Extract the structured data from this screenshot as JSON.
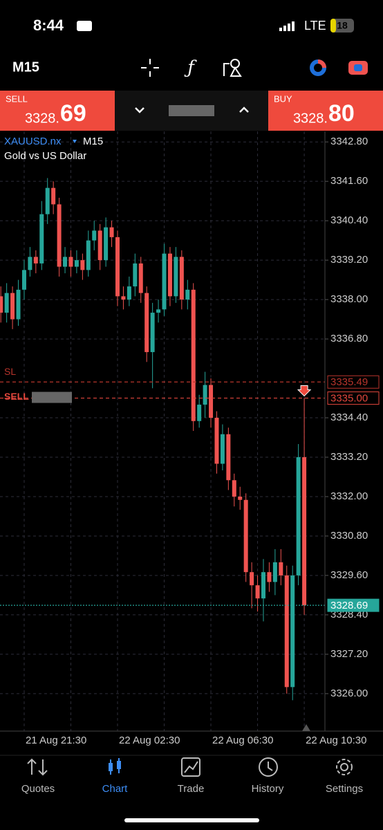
{
  "status": {
    "time": "8:44",
    "network": "LTE",
    "battery": "18"
  },
  "toolbar": {
    "timeframe": "M15"
  },
  "sell": {
    "label": "SELL",
    "price_main": "3328.",
    "price_big": "69"
  },
  "buy": {
    "label": "BUY",
    "price_main": "3328.",
    "price_big": "80"
  },
  "chart_data": {
    "type": "candlestick",
    "symbol": "XAUUSD.nx",
    "timeframe": "M15",
    "description": "Gold vs US Dollar",
    "categories": [
      null,
      null,
      null,
      null,
      "21 Aug 21:30",
      null,
      null,
      null,
      null,
      null,
      null,
      null,
      null,
      null,
      null,
      null,
      null,
      null,
      null,
      null,
      "22 Aug 02:30",
      null,
      null,
      null,
      null,
      null,
      null,
      null,
      null,
      null,
      null,
      null,
      null,
      null,
      null,
      null,
      "22 Aug 06:30",
      null,
      null,
      null,
      null,
      null,
      null,
      null,
      null,
      null,
      null,
      null,
      null,
      null,
      null,
      null,
      "22 Aug 10:30"
    ],
    "open": [
      3338.1,
      3337.6,
      3338.2,
      3337.4,
      3338.3,
      3338.9,
      3339.3,
      3339.1,
      3340.6,
      3341.4,
      3340.9,
      3339.0,
      3339.3,
      3339.0,
      3339.2,
      3338.9,
      3339.8,
      3340.1,
      3339.2,
      3340.2,
      3339.9,
      3338.1,
      3338.0,
      3338.4,
      3339.1,
      3338.2,
      3336.4,
      3337.6,
      3337.7,
      3339.4,
      3338.1,
      3339.3,
      3338.0,
      3338.3,
      3334.3,
      3334.8,
      3335.4,
      3334.4,
      3333.0,
      3333.9,
      3332.5,
      3332.0,
      3331.9,
      3329.7,
      3329.3,
      3328.9,
      3329.7,
      3329.4,
      3330.0,
      3329.6,
      3326.2,
      3329.6,
      3333.2
    ],
    "high": [
      3338.4,
      3338.5,
      3338.4,
      3338.6,
      3339.2,
      3339.6,
      3339.5,
      3341.0,
      3341.7,
      3341.6,
      3341.1,
      3339.6,
      3339.5,
      3339.5,
      3339.4,
      3340.1,
      3340.4,
      3340.3,
      3340.5,
      3340.4,
      3340.1,
      3338.4,
      3338.7,
      3339.4,
      3339.3,
      3338.4,
      3337.9,
      3338.0,
      3339.7,
      3339.6,
      3339.6,
      3339.5,
      3338.6,
      3338.5,
      3335.1,
      3335.8,
      3335.6,
      3334.6,
      3334.2,
      3334.1,
      3332.7,
      3332.3,
      3332.1,
      3330.0,
      3329.6,
      3330.1,
      3330.0,
      3330.4,
      3330.4,
      3329.9,
      3329.9,
      3333.6,
      3335.0
    ],
    "low": [
      3337.3,
      3337.3,
      3337.1,
      3337.2,
      3338.0,
      3338.7,
      3338.8,
      3338.9,
      3340.3,
      3340.6,
      3338.7,
      3338.8,
      3338.7,
      3338.8,
      3338.6,
      3338.7,
      3339.5,
      3338.9,
      3339.0,
      3339.6,
      3337.8,
      3337.7,
      3337.8,
      3338.1,
      3337.9,
      3336.1,
      3335.3,
      3337.3,
      3337.5,
      3337.8,
      3337.9,
      3337.7,
      3337.7,
      3334.0,
      3334.1,
      3334.4,
      3334.1,
      3332.7,
      3332.8,
      3332.2,
      3331.7,
      3331.6,
      3329.4,
      3328.6,
      3328.5,
      3328.2,
      3329.1,
      3329.0,
      3329.3,
      3326.0,
      3325.8,
      3329.3,
      3328.4
    ],
    "close": [
      3337.6,
      3338.2,
      3337.4,
      3338.3,
      3338.9,
      3339.3,
      3339.1,
      3340.6,
      3341.4,
      3340.9,
      3339.0,
      3339.3,
      3339.0,
      3339.2,
      3338.9,
      3339.8,
      3340.1,
      3339.2,
      3340.2,
      3339.9,
      3338.1,
      3338.0,
      3338.4,
      3339.1,
      3338.2,
      3336.4,
      3337.6,
      3337.7,
      3339.4,
      3338.1,
      3339.3,
      3338.0,
      3338.3,
      3334.3,
      3334.8,
      3335.4,
      3334.4,
      3333.0,
      3333.9,
      3332.5,
      3332.0,
      3331.9,
      3329.7,
      3329.3,
      3328.9,
      3329.7,
      3329.4,
      3330.0,
      3329.6,
      3326.2,
      3329.6,
      3333.2,
      3328.69
    ],
    "up_color": "#26a69a",
    "down_color": "#ef5350",
    "ylim": [
      3324.86,
      3343.12
    ],
    "yticks": [
      {
        "value": 3342.8,
        "label": "3342.80"
      },
      {
        "value": 3341.6,
        "label": "3341.60"
      },
      {
        "value": 3340.4,
        "label": "3340.40"
      },
      {
        "value": 3339.2,
        "label": "3339.20"
      },
      {
        "value": 3338,
        "label": "3338.00"
      },
      {
        "value": 3336.8,
        "label": "3336.80"
      },
      {
        "value": 3334.4,
        "label": "3334.40"
      },
      {
        "value": 3333.2,
        "label": "3333.20"
      },
      {
        "value": 3332,
        "label": "3332.00"
      },
      {
        "value": 3330.8,
        "label": "3330.80"
      },
      {
        "value": 3329.6,
        "label": "3329.60"
      },
      {
        "value": 3328.4,
        "label": "3328.40"
      },
      {
        "value": 3327.2,
        "label": "3327.20"
      },
      {
        "value": 3326,
        "label": "3326.00"
      }
    ],
    "grid": true,
    "levels": [
      {
        "name": "SL",
        "value": 3335.49,
        "label": "3335.49",
        "color": "#b8342c"
      },
      {
        "name": "SELL",
        "value": 3335,
        "label": "3335.00",
        "color": "#e0463c"
      },
      {
        "value": 3328.69,
        "label": "3328.69",
        "color": "#26a69a"
      }
    ]
  },
  "tabs": [
    "Quotes",
    "Chart",
    "Trade",
    "History",
    "Settings"
  ]
}
